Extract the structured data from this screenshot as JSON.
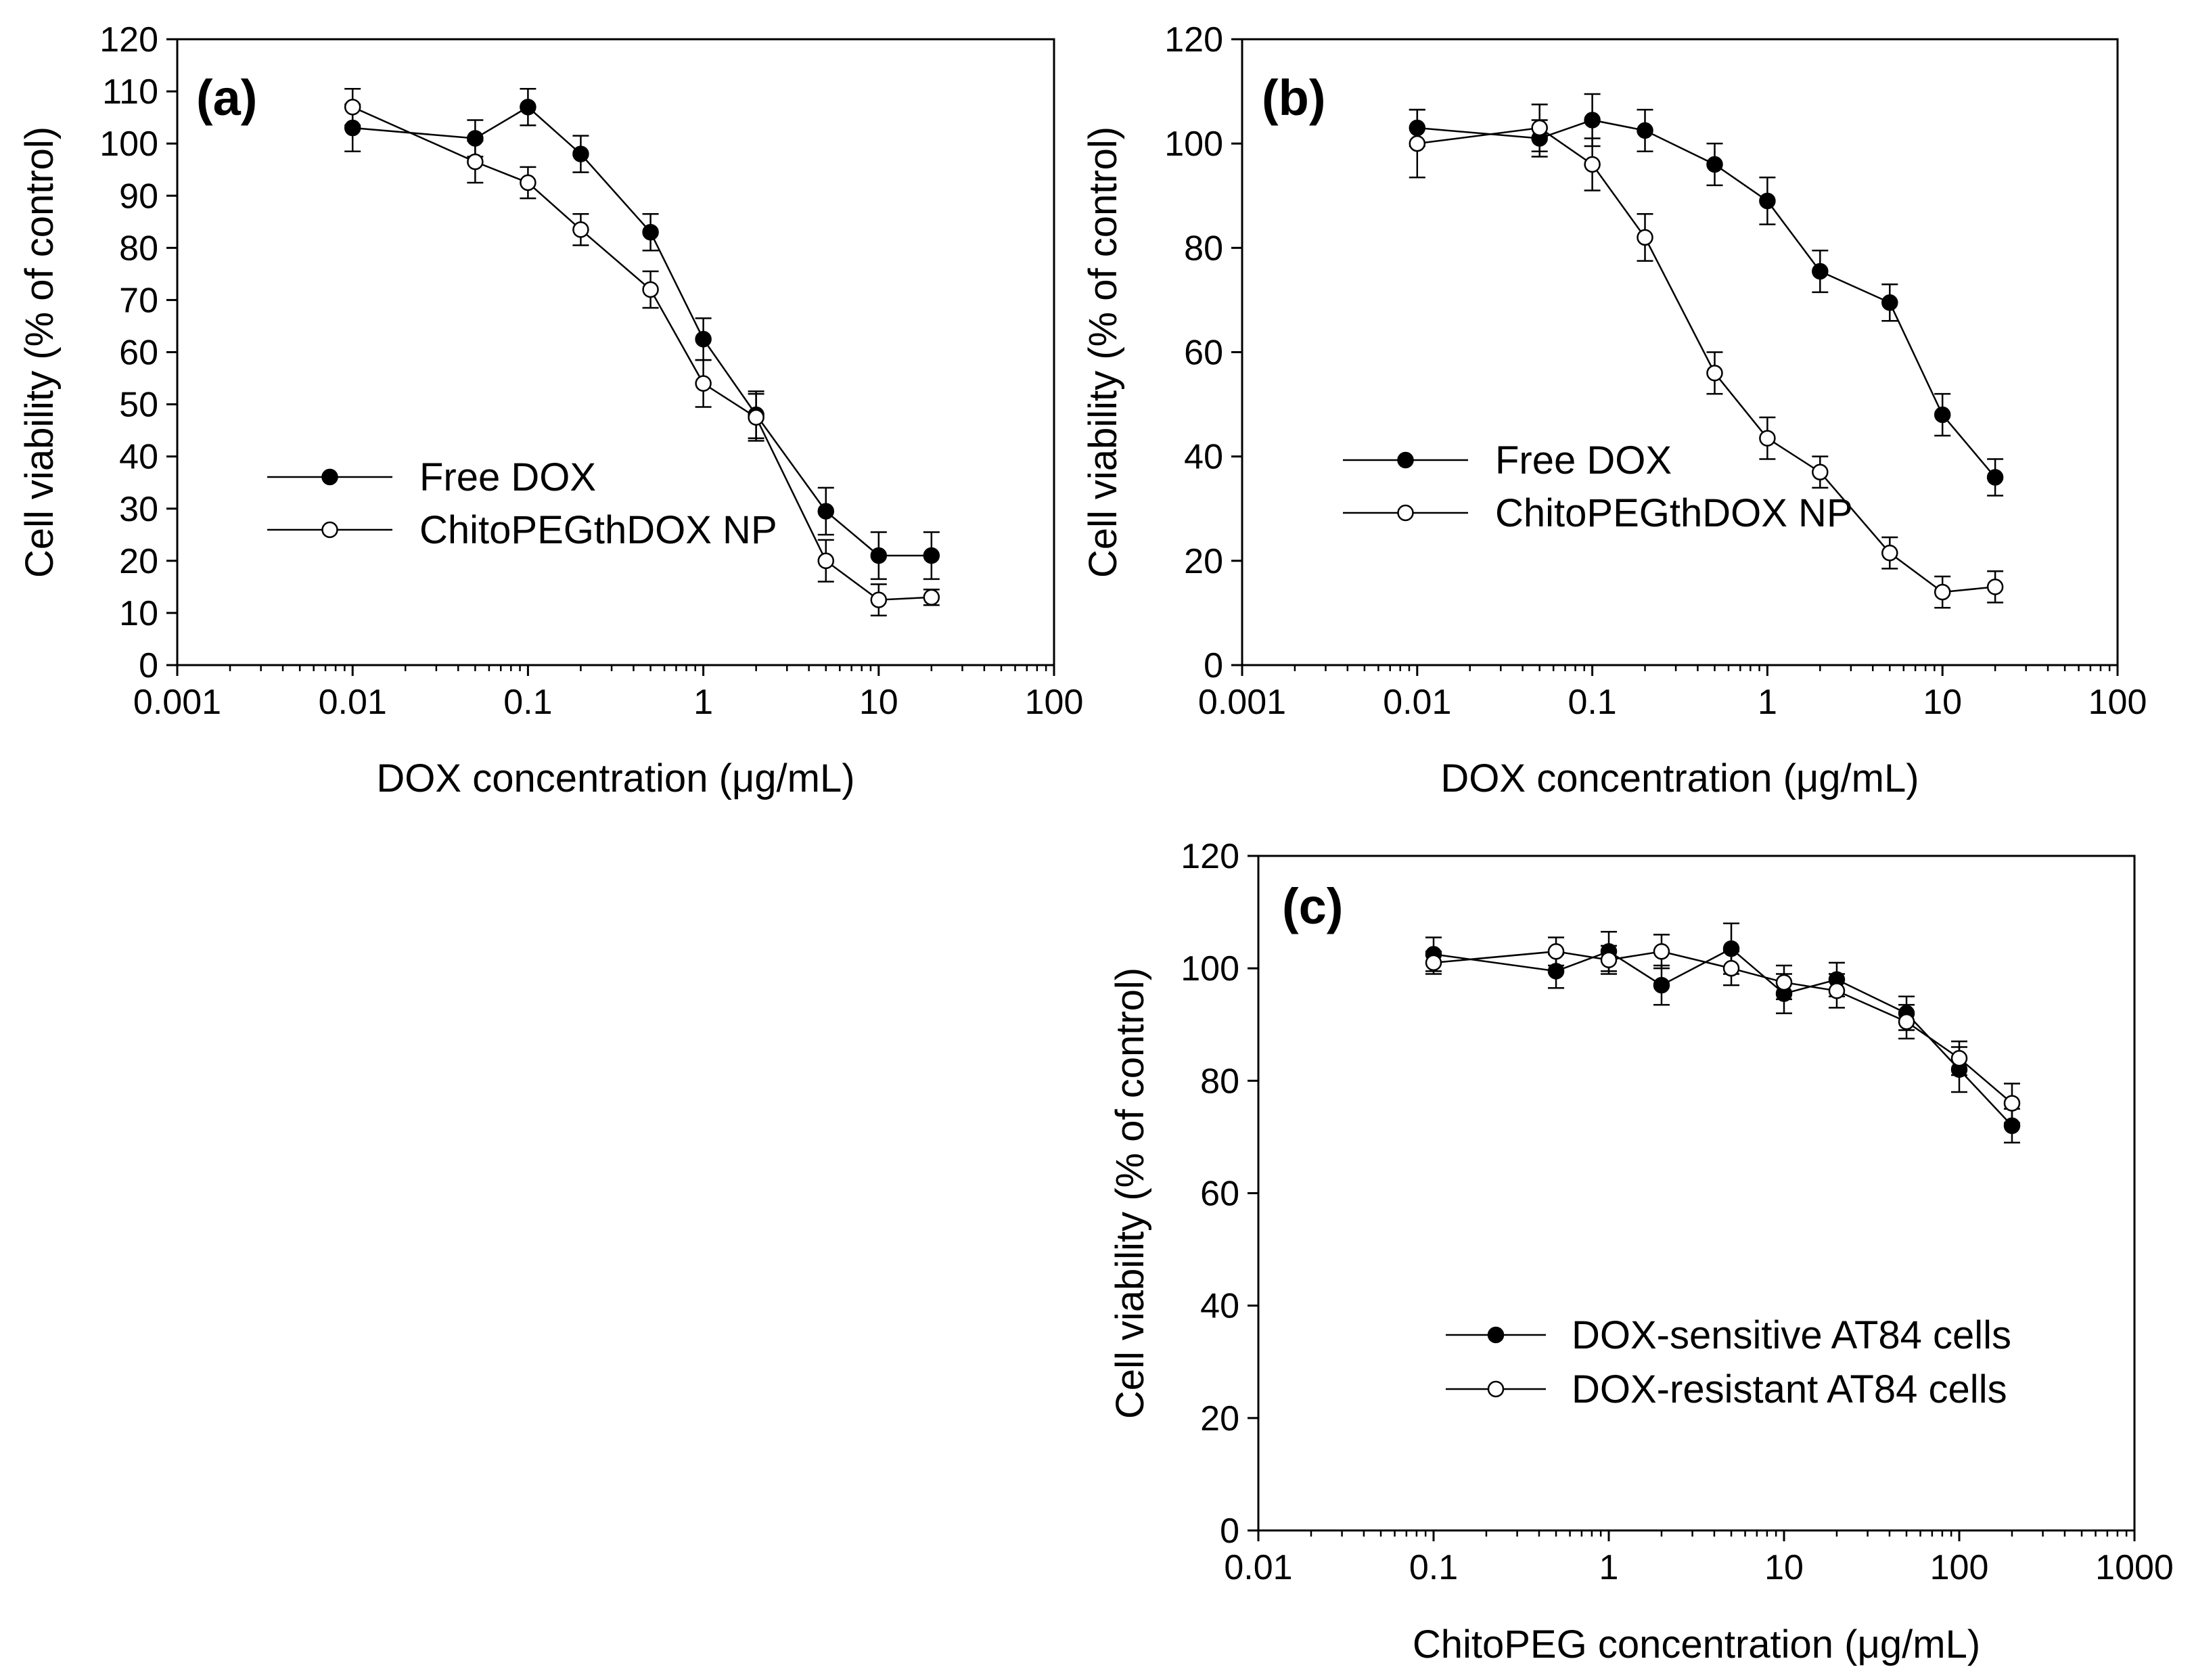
{
  "chart_data": [
    {
      "type": "line",
      "panel_label": "(a)",
      "xscale": "log",
      "xlim": [
        0.001,
        100
      ],
      "ylim": [
        0,
        120
      ],
      "xticks": [
        0.001,
        0.01,
        0.1,
        1,
        10,
        100
      ],
      "xtick_labels": [
        "0.001",
        "0.01",
        "0.1",
        "1",
        "10",
        "100"
      ],
      "yticks": [
        0,
        10,
        20,
        30,
        40,
        50,
        60,
        70,
        80,
        90,
        100,
        110,
        120
      ],
      "ytick_labels": [
        "0",
        "10",
        "20",
        "30",
        "40",
        "50",
        "60",
        "70",
        "80",
        "90",
        "100",
        "110",
        "120"
      ],
      "xlabel": "DOX concentration (μg/mL)",
      "ylabel": "Cell viability (% of control)",
      "legend_position": "lower-left",
      "series": [
        {
          "name": "Free DOX",
          "marker": "filled-circle",
          "x": [
            0.01,
            0.05,
            0.1,
            0.2,
            0.5,
            1,
            2,
            5,
            10,
            20
          ],
          "y": [
            103,
            101,
            107,
            98,
            83,
            62.5,
            48,
            29.5,
            21,
            21
          ],
          "err": [
            4.5,
            3.5,
            3.5,
            3.5,
            3.5,
            4,
            4.5,
            4.5,
            4.5,
            4.5
          ]
        },
        {
          "name": "ChitoPEGthDOX NP",
          "marker": "open-circle",
          "x": [
            0.01,
            0.05,
            0.1,
            0.2,
            0.5,
            1,
            2,
            5,
            10,
            20
          ],
          "y": [
            107,
            96.5,
            92.5,
            83.5,
            72,
            54,
            47.5,
            20,
            12.5,
            13
          ],
          "err": [
            3.5,
            4,
            3,
            3,
            3.5,
            4.5,
            4.5,
            4,
            3,
            1.5
          ]
        }
      ]
    },
    {
      "type": "line",
      "panel_label": "(b)",
      "xscale": "log",
      "xlim": [
        0.001,
        100
      ],
      "ylim": [
        0,
        120
      ],
      "xticks": [
        0.001,
        0.01,
        0.1,
        1,
        10,
        100
      ],
      "xtick_labels": [
        "0.001",
        "0.01",
        "0.1",
        "1",
        "10",
        "100"
      ],
      "yticks": [
        0,
        20,
        40,
        60,
        80,
        100,
        120
      ],
      "ytick_labels": [
        "0",
        "20",
        "40",
        "60",
        "80",
        "100",
        "120"
      ],
      "xlabel": "DOX concentration (μg/mL)",
      "ylabel": "Cell viability (% of control)",
      "legend_position": "lower-left",
      "series": [
        {
          "name": "Free DOX",
          "marker": "filled-circle",
          "x": [
            0.01,
            0.05,
            0.1,
            0.2,
            0.5,
            1,
            2,
            5,
            10,
            20
          ],
          "y": [
            103,
            101,
            104.5,
            102.5,
            96,
            89,
            75.5,
            69.5,
            48,
            36
          ],
          "err": [
            3.5,
            3.5,
            5,
            4,
            4,
            4.5,
            4,
            3.5,
            4,
            3.5
          ]
        },
        {
          "name": "ChitoPEGthDOX NP",
          "marker": "open-circle",
          "x": [
            0.01,
            0.05,
            0.1,
            0.2,
            0.5,
            1,
            2,
            5,
            10,
            20
          ],
          "y": [
            100,
            103,
            96,
            82,
            56,
            43.5,
            37,
            21.5,
            14,
            15
          ],
          "err": [
            6.5,
            4.5,
            5,
            4.5,
            4,
            4,
            3,
            3,
            3,
            3
          ]
        }
      ]
    },
    {
      "type": "line",
      "panel_label": "(c)",
      "xscale": "log",
      "xlim": [
        0.01,
        1000
      ],
      "ylim": [
        0,
        120
      ],
      "xticks": [
        0.01,
        0.1,
        1,
        10,
        100,
        1000
      ],
      "xtick_labels": [
        "0.01",
        "0.1",
        "1",
        "10",
        "100",
        "1000"
      ],
      "yticks": [
        0,
        20,
        40,
        60,
        80,
        100,
        120
      ],
      "ytick_labels": [
        "0",
        "20",
        "40",
        "60",
        "80",
        "100",
        "120"
      ],
      "xlabel": "ChitoPEG concentration (μg/mL)",
      "ylabel": "Cell viability (% of control)",
      "legend_position": "lower-right",
      "series": [
        {
          "name": "DOX-sensitive AT84 cells",
          "marker": "filled-circle",
          "x": [
            0.1,
            0.5,
            1,
            2,
            5,
            10,
            20,
            50,
            100,
            200
          ],
          "y": [
            102.5,
            99.5,
            103,
            97,
            103.5,
            95.5,
            98,
            92,
            82,
            72
          ],
          "err": [
            3,
            3,
            3.5,
            3.5,
            4.5,
            3.5,
            3,
            3,
            4,
            3
          ]
        },
        {
          "name": "DOX-resistant AT84 cells",
          "marker": "open-circle",
          "x": [
            0.1,
            0.5,
            1,
            2,
            5,
            10,
            20,
            50,
            100,
            200
          ],
          "y": [
            101,
            103,
            101.5,
            103,
            100,
            97.5,
            96,
            90.5,
            84,
            76
          ],
          "err": [
            2,
            2.5,
            2.5,
            3,
            3,
            3,
            3,
            3,
            3,
            3.5
          ]
        }
      ]
    }
  ]
}
